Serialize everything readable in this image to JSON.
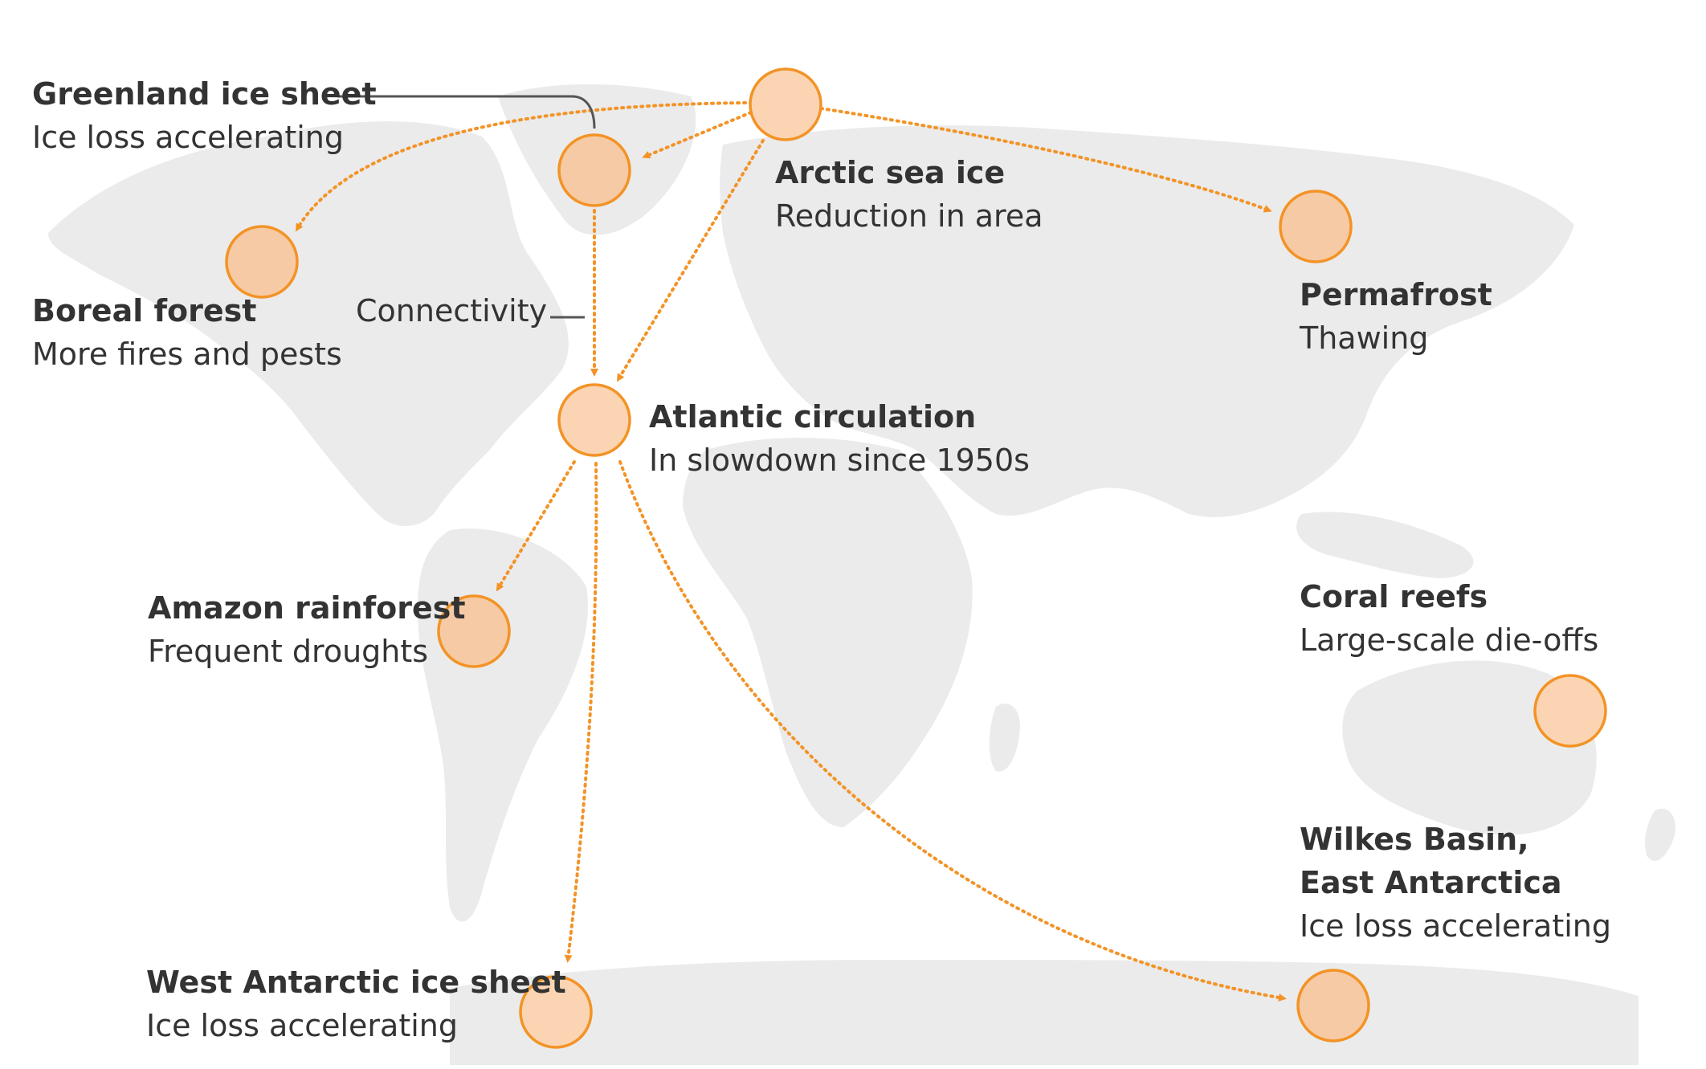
{
  "colors": {
    "accent": "#f39326",
    "node_fill": "#fbd5b3",
    "land": "#ebebeb",
    "text": "#333333"
  },
  "legend": {
    "connectivity_label": "Connectivity"
  },
  "tipping_points": [
    {
      "id": "greenland",
      "title": "Greenland ice sheet",
      "subtitle": "Ice loss accelerating"
    },
    {
      "id": "arctic",
      "title": "Arctic sea ice",
      "subtitle": "Reduction in area"
    },
    {
      "id": "permafrost",
      "title": "Permafrost",
      "subtitle": "Thawing"
    },
    {
      "id": "boreal",
      "title": "Boreal forest",
      "subtitle": "More fires and pests"
    },
    {
      "id": "atlantic",
      "title": "Atlantic circulation",
      "subtitle": "In slowdown since 1950s"
    },
    {
      "id": "amazon",
      "title": "Amazon rainforest",
      "subtitle": "Frequent droughts"
    },
    {
      "id": "coral",
      "title": "Coral reefs",
      "subtitle": "Large-scale die-offs"
    },
    {
      "id": "wilkes",
      "title_line1": "Wilkes Basin,",
      "title_line2": "East Antarctica",
      "subtitle": "Ice loss accelerating"
    },
    {
      "id": "west_antarctic",
      "title": "West Antarctic ice sheet",
      "subtitle": "Ice loss accelerating"
    }
  ],
  "connections": [
    {
      "from": "arctic",
      "to": "boreal"
    },
    {
      "from": "arctic",
      "to": "greenland"
    },
    {
      "from": "arctic",
      "to": "atlantic"
    },
    {
      "from": "arctic",
      "to": "permafrost"
    },
    {
      "from": "greenland",
      "to": "atlantic"
    },
    {
      "from": "atlantic",
      "to": "amazon"
    },
    {
      "from": "atlantic",
      "to": "west_antarctic"
    },
    {
      "from": "atlantic",
      "to": "wilkes"
    }
  ]
}
